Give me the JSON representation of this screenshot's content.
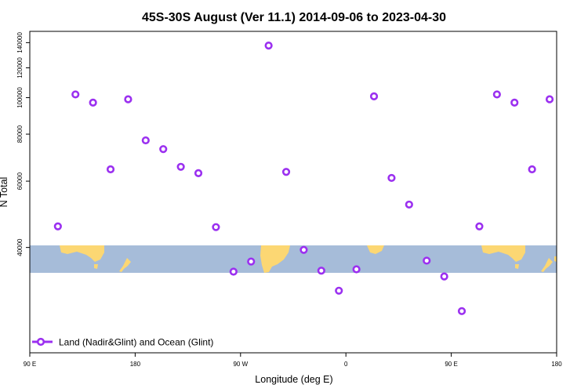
{
  "chart_data": {
    "type": "scatter",
    "title": "45S-30S August (Ver 11.1)   2014-09-06 to 2023-04-30",
    "xlabel": "Longitude (deg E)",
    "ylabel": "N Total",
    "y_scale": "log",
    "xlim": [
      90,
      540
    ],
    "ylim": [
      21000,
      150000
    ],
    "x_ticks": [
      {
        "value": 90,
        "label": "90 E"
      },
      {
        "value": 180,
        "label": "180"
      },
      {
        "value": 270,
        "label": "90 W"
      },
      {
        "value": 360,
        "label": "0"
      },
      {
        "value": 450,
        "label": "90 E"
      },
      {
        "value": 540,
        "label": "180"
      }
    ],
    "y_ticks": [
      {
        "value": 40000,
        "label": "40000"
      },
      {
        "value": 60000,
        "label": "60000"
      },
      {
        "value": 80000,
        "label": "80000"
      },
      {
        "value": 100000,
        "label": "100000"
      },
      {
        "value": 120000,
        "label": "120000"
      },
      {
        "value": 140000,
        "label": "140000"
      }
    ],
    "grid": false,
    "legend_position": "bottom-left",
    "background_map": "world map strip, latitude band 45S-30S",
    "series": [
      {
        "name": "Land (Nadir&Glint) and Ocean (Glint)",
        "color": "#9b30f0",
        "marker": "open-circle",
        "x": [
          114,
          129,
          144,
          159,
          174,
          189,
          204,
          219,
          234,
          249,
          264,
          279,
          294,
          309,
          324,
          339,
          354,
          369,
          384,
          399,
          414,
          429,
          444,
          459,
          474,
          489,
          504,
          519,
          534
        ],
        "y": [
          45500,
          102000,
          97000,
          64500,
          99000,
          77000,
          73000,
          65500,
          63000,
          45300,
          34500,
          36700,
          137500,
          63500,
          39400,
          34700,
          30700,
          35000,
          100800,
          61200,
          52000,
          36900,
          33500,
          27100,
          45500,
          102000,
          97000,
          64500,
          99000
        ]
      }
    ]
  },
  "colors": {
    "ocean": "#a6bcd9",
    "land": "#fcd773",
    "marker": "#9b30f0",
    "text": "#000000"
  }
}
